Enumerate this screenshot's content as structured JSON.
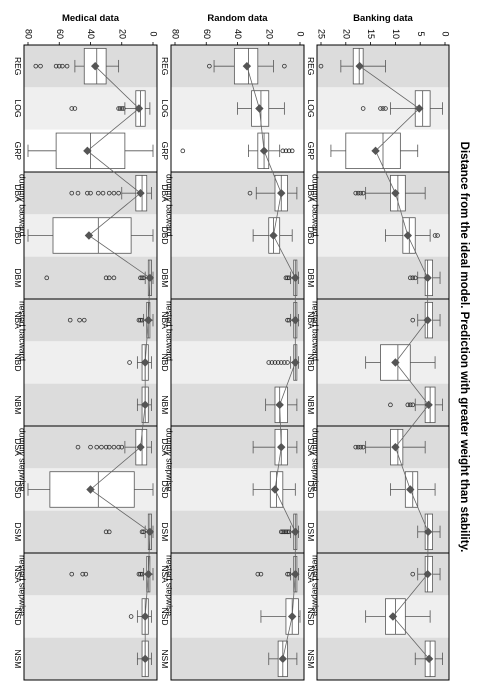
{
  "title": "Distance from the ideal model. Prediction with greater weight than stability.",
  "colors": {
    "band_dark": "#dcdcdc",
    "band_light": "#efefef",
    "band_white": "#ffffff",
    "box_fill": "#ffffff",
    "box_stroke": "#555555",
    "mean_marker": "#555555",
    "mean_line": "#666666",
    "frame": "#000000"
  },
  "chart_data": [
    {
      "type": "box",
      "title": "Banking data",
      "xlim": [
        0,
        25
      ],
      "ticks": [
        0,
        5,
        10,
        15,
        20,
        25
      ],
      "categories": [
        "REG",
        "LOG",
        "GRP",
        "DBA",
        "DBD",
        "DBM",
        "NBA",
        "NBD",
        "NBM",
        "DSA",
        "DSD",
        "DSM",
        "NSA",
        "NSD",
        "NSM"
      ],
      "group_labels": [
        "dummy bacward",
        "nested bacward",
        "dummy stepwise",
        "nested stepwise"
      ],
      "series": [
        {
          "q1": 16.5,
          "median": 17.3,
          "q3": 18.5,
          "wmin": 12,
          "wmax": 21,
          "mean": 17.2,
          "outliers": [
            25
          ]
        },
        {
          "q1": 3,
          "median": 4.5,
          "q3": 6,
          "wmin": 0.5,
          "wmax": 11,
          "mean": 5.2,
          "outliers": [
            12,
            12.5,
            13,
            16.5
          ]
        },
        {
          "q1": 9,
          "median": 12.5,
          "q3": 20,
          "wmin": 5.5,
          "wmax": 23,
          "mean": 14,
          "outliers": []
        },
        {
          "q1": 8,
          "median": 9.5,
          "q3": 11,
          "wmin": 4,
          "wmax": 16,
          "mean": 10,
          "outliers": [
            16.5,
            17,
            17.5,
            18
          ]
        },
        {
          "q1": 6,
          "median": 7.2,
          "q3": 8.5,
          "wmin": 3,
          "wmax": 12,
          "mean": 7.5,
          "outliers": [
            1.5,
            2
          ]
        },
        {
          "q1": 2.5,
          "median": 3.5,
          "q3": 4,
          "wmin": 1,
          "wmax": 5.5,
          "mean": 3.5,
          "outliers": [
            6,
            6.5,
            7
          ]
        },
        {
          "q1": 2.5,
          "median": 3.5,
          "q3": 4,
          "wmin": 1,
          "wmax": 5.5,
          "mean": 3.5,
          "outliers": [
            6.5
          ]
        },
        {
          "q1": 7,
          "median": 9.5,
          "q3": 13,
          "wmin": 2,
          "wmax": 16,
          "mean": 10,
          "outliers": []
        },
        {
          "q1": 2,
          "median": 3,
          "q3": 4,
          "wmin": 0.5,
          "wmax": 6,
          "mean": 3.3,
          "outliers": [
            6.5,
            7,
            7.5,
            11
          ]
        },
        {
          "q1": 8.5,
          "median": 9.5,
          "q3": 11,
          "wmin": 4,
          "wmax": 16,
          "mean": 10,
          "outliers": [
            16.5,
            17,
            17.5,
            18
          ]
        },
        {
          "q1": 5.5,
          "median": 6.5,
          "q3": 8,
          "wmin": 2,
          "wmax": 11,
          "mean": 7,
          "outliers": []
        },
        {
          "q1": 2.5,
          "median": 3.5,
          "q3": 4,
          "wmin": 1,
          "wmax": 5.5,
          "mean": 3.4,
          "outliers": []
        },
        {
          "q1": 2.5,
          "median": 3.5,
          "q3": 4,
          "wmin": 1,
          "wmax": 5.5,
          "mean": 3.5,
          "outliers": [
            6.5
          ]
        },
        {
          "q1": 8,
          "median": 10,
          "q3": 12,
          "wmin": 3,
          "wmax": 16,
          "mean": 10.5,
          "outliers": []
        },
        {
          "q1": 2,
          "median": 3,
          "q3": 4,
          "wmin": 0.5,
          "wmax": 6,
          "mean": 3.2,
          "outliers": []
        }
      ]
    },
    {
      "type": "box",
      "title": "Random data",
      "xlim": [
        0,
        80
      ],
      "ticks": [
        0,
        20,
        40,
        60,
        80
      ],
      "categories": [
        "REG",
        "LOG",
        "GRP",
        "DBA",
        "DBD",
        "DBM",
        "NBA",
        "NBD",
        "NBM",
        "DSA",
        "DSD",
        "DSM",
        "NSA",
        "NSD",
        "NSM"
      ],
      "group_labels": [
        "dummy bacward",
        "nested bacward",
        "dummy stepwise",
        "nested stepwise"
      ],
      "series": [
        {
          "q1": 27,
          "median": 33,
          "q3": 42,
          "wmin": 17,
          "wmax": 55,
          "mean": 34,
          "outliers": [
            10,
            58
          ]
        },
        {
          "q1": 20,
          "median": 25,
          "q3": 31,
          "wmin": 10,
          "wmax": 40,
          "mean": 26,
          "outliers": []
        },
        {
          "q1": 20,
          "median": 23,
          "q3": 27,
          "wmin": 13,
          "wmax": 33,
          "mean": 23,
          "outliers": [
            5,
            7,
            9,
            11,
            75
          ]
        },
        {
          "q1": 8,
          "median": 12,
          "q3": 16,
          "wmin": 2,
          "wmax": 28,
          "mean": 12,
          "outliers": [
            32
          ]
        },
        {
          "q1": 13,
          "median": 17,
          "q3": 20,
          "wmin": 5,
          "wmax": 30,
          "mean": 17,
          "outliers": []
        },
        {
          "q1": 2,
          "median": 3,
          "q3": 4,
          "wmin": 1,
          "wmax": 6,
          "mean": 3,
          "outliers": [
            7,
            8,
            9
          ]
        },
        {
          "q1": 2,
          "median": 3,
          "q3": 4,
          "wmin": 1,
          "wmax": 6,
          "mean": 3,
          "outliers": [
            7,
            8
          ]
        },
        {
          "q1": 2,
          "median": 3,
          "q3": 4,
          "wmin": 1,
          "wmax": 6,
          "mean": 3,
          "outliers": [
            8,
            10,
            12,
            14,
            16,
            18,
            20
          ]
        },
        {
          "q1": 8,
          "median": 13,
          "q3": 16,
          "wmin": 2,
          "wmax": 22,
          "mean": 13,
          "outliers": []
        },
        {
          "q1": 8,
          "median": 12,
          "q3": 16,
          "wmin": 2,
          "wmax": 30,
          "mean": 12,
          "outliers": []
        },
        {
          "q1": 11,
          "median": 15,
          "q3": 19,
          "wmin": 3,
          "wmax": 30,
          "mean": 16,
          "outliers": []
        },
        {
          "q1": 2,
          "median": 3,
          "q3": 4,
          "wmin": 1,
          "wmax": 6,
          "mean": 3,
          "outliers": [
            7,
            8,
            9,
            10,
            11,
            12
          ]
        },
        {
          "q1": 2,
          "median": 3,
          "q3": 4,
          "wmin": 1,
          "wmax": 6,
          "mean": 3,
          "outliers": [
            7,
            8,
            25,
            27
          ]
        },
        {
          "q1": 1,
          "median": 5,
          "q3": 9,
          "wmin": 0,
          "wmax": 25,
          "mean": 5,
          "outliers": []
        },
        {
          "q1": 8,
          "median": 11,
          "q3": 14,
          "wmin": 2,
          "wmax": 20,
          "mean": 11,
          "outliers": []
        }
      ]
    },
    {
      "type": "box",
      "title": "Medical data",
      "xlim": [
        0,
        80
      ],
      "ticks": [
        0,
        20,
        40,
        60,
        80
      ],
      "categories": [
        "REG",
        "LOG",
        "GRP",
        "DBA",
        "DBD",
        "DBM",
        "NBA",
        "NBD",
        "NBM",
        "DSA",
        "DSD",
        "DSM",
        "NSA",
        "NSD",
        "NSM"
      ],
      "group_labels": [
        "dummy bacward",
        "nested bacward",
        "dummy stepwise",
        "nested stepwise"
      ],
      "series": [
        {
          "q1": 30,
          "median": 36,
          "q3": 44,
          "wmin": 22,
          "wmax": 50,
          "mean": 37,
          "outliers": [
            55,
            58,
            60,
            62,
            72,
            75
          ]
        },
        {
          "q1": 5,
          "median": 8,
          "q3": 11,
          "wmin": 2,
          "wmax": 18,
          "mean": 9,
          "outliers": [
            19,
            20,
            21,
            22,
            50,
            52
          ]
        },
        {
          "q1": 18,
          "median": 40,
          "q3": 62,
          "wmin": 0,
          "wmax": 80,
          "mean": 42,
          "outliers": []
        },
        {
          "q1": 4,
          "median": 7,
          "q3": 11,
          "wmin": 1,
          "wmax": 20,
          "mean": 8,
          "outliers": [
            22,
            25,
            28,
            32,
            35,
            40,
            42,
            48,
            52
          ]
        },
        {
          "q1": 14,
          "median": 35,
          "q3": 64,
          "wmin": 0,
          "wmax": 80,
          "mean": 41,
          "outliers": []
        },
        {
          "q1": 1,
          "median": 2,
          "q3": 3,
          "wmin": 0,
          "wmax": 5,
          "mean": 2,
          "outliers": [
            6,
            7,
            8,
            25,
            28,
            30,
            68
          ]
        },
        {
          "q1": 2,
          "median": 3,
          "q3": 4,
          "wmin": 0,
          "wmax": 6,
          "mean": 3,
          "outliers": [
            7,
            8,
            9,
            44,
            47,
            53
          ]
        },
        {
          "q1": 3,
          "median": 5,
          "q3": 7,
          "wmin": 1,
          "wmax": 10,
          "mean": 5,
          "outliers": [
            15
          ]
        },
        {
          "q1": 3,
          "median": 5,
          "q3": 7,
          "wmin": 1,
          "wmax": 10,
          "mean": 5,
          "outliers": []
        },
        {
          "q1": 4,
          "median": 7,
          "q3": 11,
          "wmin": 1,
          "wmax": 18,
          "mean": 8,
          "outliers": [
            20,
            22,
            25,
            28,
            30,
            33,
            36,
            40,
            48
          ]
        },
        {
          "q1": 12,
          "median": 35,
          "q3": 66,
          "wmin": 0,
          "wmax": 80,
          "mean": 40,
          "outliers": []
        },
        {
          "q1": 1,
          "median": 2,
          "q3": 3,
          "wmin": 0,
          "wmax": 5,
          "mean": 2,
          "outliers": [
            6,
            7,
            28,
            30
          ]
        },
        {
          "q1": 2,
          "median": 3,
          "q3": 4,
          "wmin": 0,
          "wmax": 6,
          "mean": 3,
          "outliers": [
            7,
            8,
            9,
            43,
            45,
            52
          ]
        },
        {
          "q1": 3,
          "median": 5,
          "q3": 7,
          "wmin": 1,
          "wmax": 10,
          "mean": 5,
          "outliers": [
            14
          ]
        },
        {
          "q1": 3,
          "median": 5,
          "q3": 7,
          "wmin": 1,
          "wmax": 10,
          "mean": 5,
          "outliers": []
        }
      ]
    }
  ]
}
